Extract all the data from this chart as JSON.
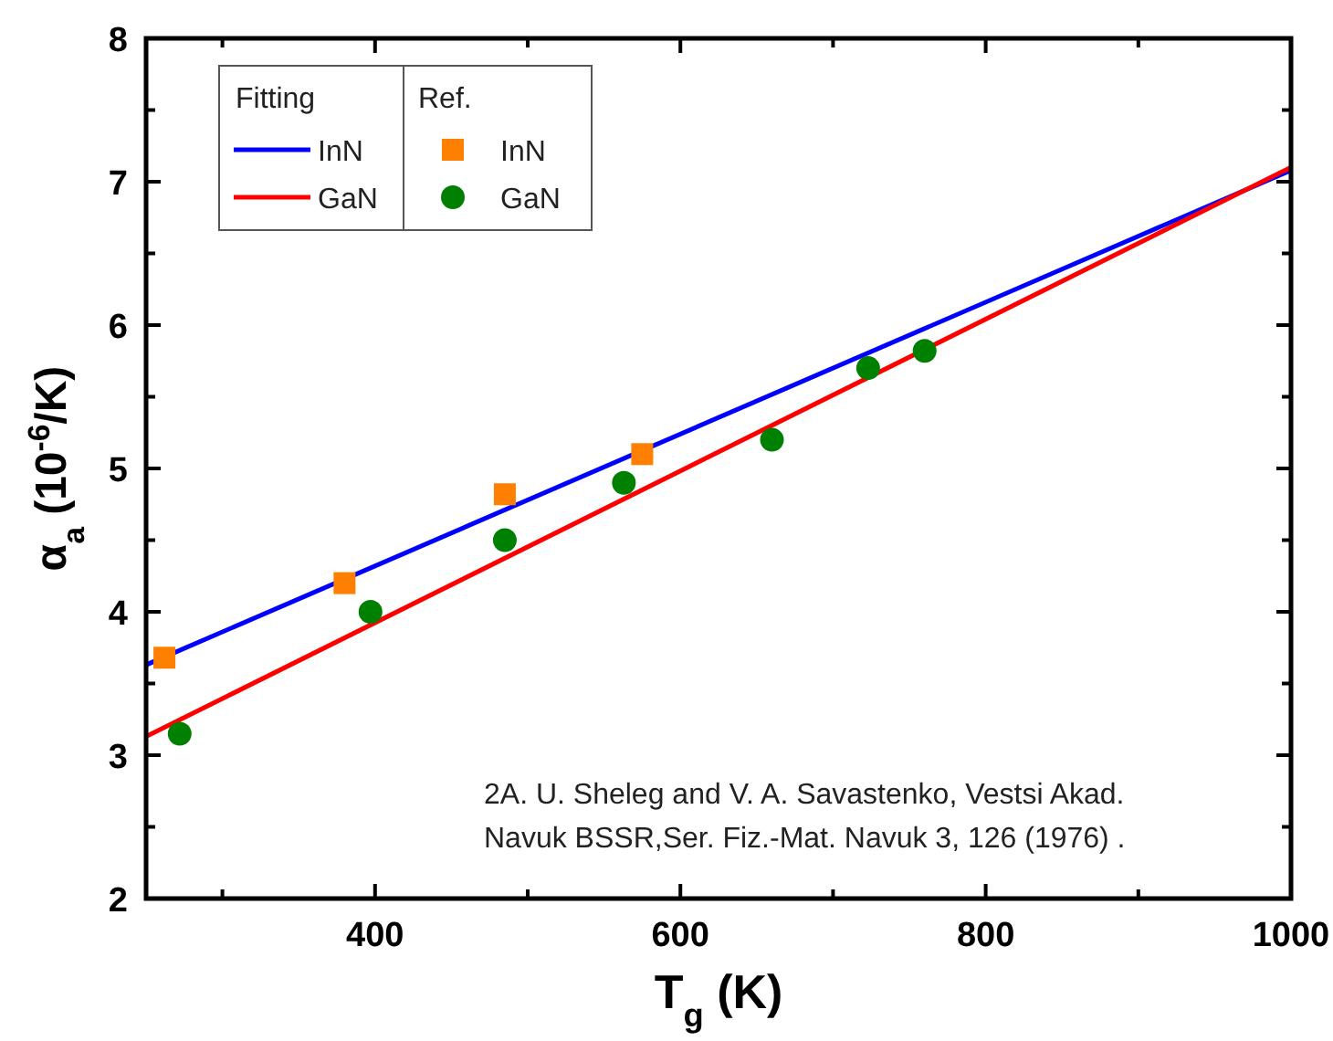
{
  "chart_data": {
    "type": "scatter",
    "xlabel": "T$_{g}$ (K)",
    "ylabel": "α$_{a}$ (10$^{-6}$/K)",
    "xlim": [
      250,
      1000
    ],
    "xticks": [
      {
        "value": 300,
        "label": null
      },
      400,
      {
        "value": 500,
        "label": null
      },
      600,
      {
        "value": 700,
        "label": null
      },
      800,
      {
        "value": 900,
        "label": null
      },
      1000
    ],
    "ylim": [
      2,
      8
    ],
    "yticks": [
      2,
      {
        "value": 2.5,
        "label": null
      },
      3,
      {
        "value": 3.5,
        "label": null
      },
      4,
      {
        "value": 4.5,
        "label": null
      },
      5,
      {
        "value": 5.5,
        "label": null
      },
      6,
      {
        "value": 6.5,
        "label": null
      },
      7,
      {
        "value": 7.5,
        "label": null
      },
      8
    ],
    "legend": "top left",
    "series": [
      {
        "name": "InN",
        "type": "line",
        "color": "#0000ff",
        "x": [
          250,
          1000
        ],
        "values": [
          3.63,
          7.08
        ],
        "marker": "none",
        "line_style": "solid"
      },
      {
        "name": "GaN",
        "type": "line",
        "color": "#ff0000",
        "x": [
          250,
          1000
        ],
        "values": [
          3.13,
          7.1
        ],
        "marker": "none",
        "line_style": "solid"
      },
      {
        "name": "InN",
        "color": "#ff8000",
        "marker": "square",
        "x": [
          262,
          380,
          485,
          575
        ],
        "values": [
          3.68,
          4.2,
          4.82,
          5.1
        ]
      },
      {
        "name": "GaN",
        "color": "#008000",
        "marker": "circle",
        "x": [
          272,
          397,
          485,
          563,
          660,
          723,
          760
        ],
        "values": [
          3.15,
          4.0,
          4.5,
          4.9,
          5.2,
          5.7,
          5.82
        ]
      }
    ],
    "annotations": [
      "Fitting",
      "Ref.",
      "2A. U. Sheleg and V. A. Savastenko, Vestsi Akad.",
      "Navuk BSSR,Ser. Fiz.-Mat. Navuk 3, 126   (1976) ."
    ]
  }
}
